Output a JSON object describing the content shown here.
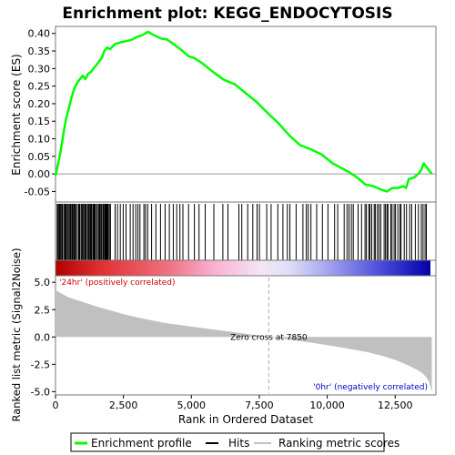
{
  "chart_data": {
    "type": "line",
    "title": "Enrichment plot: KEGG_ENDOCYTOSIS",
    "xlabel": "Rank in Ordered Dataset",
    "x_ticks": [
      0,
      2500,
      5000,
      7500,
      10000,
      12500
    ],
    "x_tick_labels": [
      "0",
      "2,500",
      "5,000",
      "7,500",
      "10,000",
      "12,500"
    ],
    "xlim": [
      0,
      14000
    ],
    "panels": {
      "es": {
        "ylabel": "Enrichment score (ES)",
        "ylim": [
          -0.08,
          0.42
        ],
        "y_ticks": [
          -0.05,
          0.0,
          0.05,
          0.1,
          0.15,
          0.2,
          0.25,
          0.3,
          0.35,
          0.4
        ],
        "y_tick_labels": [
          "-0.05",
          "0.00",
          "0.05",
          "0.10",
          "0.15",
          "0.20",
          "0.25",
          "0.30",
          "0.35",
          "0.40"
        ],
        "series": [
          {
            "name": "Enrichment profile",
            "color": "#00ff00",
            "x": [
              0,
              100,
              200,
              300,
              400,
              500,
              600,
              700,
              800,
              900,
              1000,
              1100,
              1200,
              1300,
              1400,
              1500,
              1600,
              1700,
              1800,
              1900,
              2000,
              2200,
              2400,
              2600,
              2800,
              3000,
              3200,
              3400,
              3500,
              3700,
              3900,
              4100,
              4300,
              4600,
              4900,
              5100,
              5400,
              5800,
              6200,
              6600,
              7000,
              7400,
              7850,
              8200,
              8600,
              9000,
              9400,
              9800,
              10200,
              10500,
              10800,
              11100,
              11400,
              11700,
              12000,
              12200,
              12400,
              12600,
              12800,
              12900,
              13000,
              13200,
              13350,
              13450,
              13550,
              13700,
              13850
            ],
            "y": [
              -0.005,
              0.03,
              0.07,
              0.12,
              0.16,
              0.19,
              0.22,
              0.245,
              0.26,
              0.27,
              0.28,
              0.27,
              0.285,
              0.29,
              0.3,
              0.31,
              0.32,
              0.33,
              0.35,
              0.36,
              0.355,
              0.37,
              0.375,
              0.378,
              0.382,
              0.39,
              0.395,
              0.405,
              0.4,
              0.392,
              0.385,
              0.383,
              0.372,
              0.355,
              0.335,
              0.33,
              0.315,
              0.29,
              0.268,
              0.255,
              0.23,
              0.205,
              0.17,
              0.145,
              0.11,
              0.082,
              0.07,
              0.055,
              0.03,
              0.018,
              0.005,
              -0.01,
              -0.03,
              -0.035,
              -0.045,
              -0.05,
              -0.04,
              -0.04,
              -0.035,
              -0.04,
              -0.015,
              -0.01,
              0.0,
              0.01,
              0.03,
              0.015,
              0.0
            ]
          }
        ]
      },
      "hits": {
        "name": "Hits",
        "color": "#000000"
      },
      "heatbar": {
        "colors_from": "#b00000",
        "colors_mid": "#ffffff",
        "colors_to": "#0000aa"
      },
      "metric": {
        "ylabel": "Ranked list metric (Signal2Noise)",
        "ylim": [
          -5.3,
          5.6
        ],
        "y_ticks": [
          -5.0,
          -2.5,
          0.0,
          2.5,
          5.0
        ],
        "y_tick_labels": [
          "-5.0",
          "-2.5",
          "0.0",
          "2.5",
          "5.0"
        ],
        "series": [
          {
            "name": "Ranking metric scores",
            "color": "#c0c0c0",
            "x": [
              0,
              200,
              500,
              1000,
              1500,
              2000,
              2500,
              3000,
              3500,
              4000,
              5000,
              6000,
              7000,
              7850,
              8500,
              9500,
              10500,
              11500,
              12000,
              12500,
              13000,
              13300,
              13500,
              13650,
              13750,
              13850
            ],
            "y": [
              4.3,
              4.0,
              3.6,
              3.2,
              2.8,
              2.45,
              2.1,
              1.8,
              1.55,
              1.3,
              0.95,
              0.62,
              0.3,
              0.0,
              -0.2,
              -0.55,
              -0.95,
              -1.4,
              -1.7,
              -2.1,
              -2.6,
              -3.0,
              -3.3,
              -3.7,
              -4.1,
              -5.0
            ]
          }
        ]
      }
    },
    "annotations": {
      "zero_cross": "Zero cross at 7850",
      "zero_cross_rank": 7850,
      "pos_label": "'24hr' (positively correlated)",
      "neg_label": "'0hr' (negatively correlated)",
      "pos_color": "#cc0000",
      "neg_color": "#0000cc"
    },
    "legend": {
      "placement": "bottom",
      "items": [
        {
          "label": "Enrichment profile",
          "color": "#00ff00"
        },
        {
          "label": "Hits",
          "color": "#000000"
        },
        {
          "label": "Ranking metric scores",
          "color": "#c0c0c0"
        }
      ]
    }
  }
}
